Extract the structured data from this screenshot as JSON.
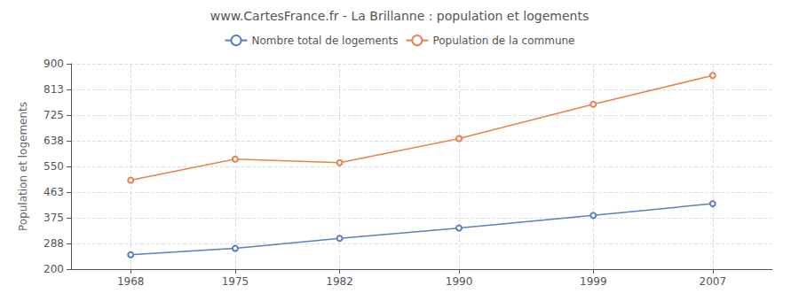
{
  "chart_data": {
    "type": "line",
    "title": "www.CartesFrance.fr - La Brillanne : population et logements",
    "ylabel": "Population et logements",
    "x": [
      1968,
      1975,
      1982,
      1990,
      1999,
      2007
    ],
    "series": [
      {
        "name": "Nombre total de logements",
        "color": "#5b7fbf",
        "values": [
          249,
          271,
          305,
          340,
          383,
          423
        ]
      },
      {
        "name": "Population de la commune",
        "color": "#e8834e",
        "values": [
          503,
          575,
          563,
          645,
          762,
          860
        ]
      }
    ],
    "xlim": [
      1964,
      2011
    ],
    "xticks": [
      1968,
      1975,
      1982,
      1990,
      1999,
      2007
    ],
    "ylim": [
      200,
      900
    ],
    "yticks": [
      200,
      288,
      375,
      463,
      550,
      638,
      725,
      813,
      900
    ],
    "grid": true,
    "legend": "top",
    "marker": "circle"
  }
}
